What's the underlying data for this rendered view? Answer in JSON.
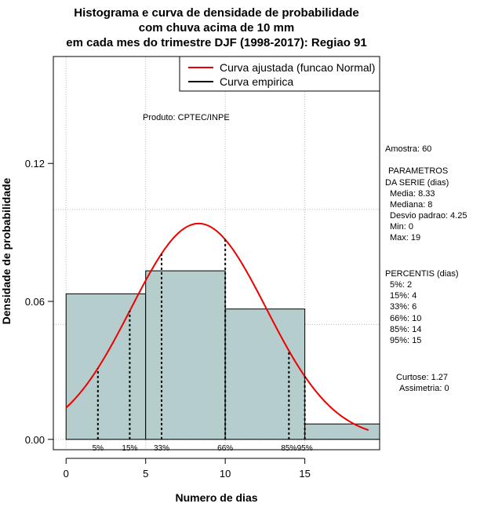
{
  "chart_data": {
    "type": "histogram",
    "title": [
      "Histograma e curva de densidade de probabilidade",
      "com chuva acima de 10 mm",
      "em cada mes do trimestre DJF (1998-2017): Regiao 91"
    ],
    "xlabel": "Numero de dias",
    "ylabel": "Densidade de probabilidade",
    "xlim": [
      -0.8,
      19.7
    ],
    "ylim": [
      -0.0045,
      0.1665
    ],
    "x_ticks": [
      0,
      5,
      10,
      15
    ],
    "x_tick_labels": [
      "0",
      "5",
      "10",
      "15"
    ],
    "y_ticks": [
      0.0,
      0.06,
      0.12
    ],
    "y_tick_labels": [
      "0.00",
      "0.06",
      "0.12"
    ],
    "grid": true,
    "grid_x": [
      0,
      5,
      10,
      15
    ],
    "grid_y": [
      0.0,
      0.05,
      0.1
    ],
    "bins": [
      {
        "x0": 0,
        "x1": 5,
        "density": 0.0633
      },
      {
        "x0": 5,
        "x1": 10,
        "density": 0.0733
      },
      {
        "x0": 10,
        "x1": 15,
        "density": 0.0567
      },
      {
        "x0": 15,
        "x1": 20,
        "density": 0.0067
      }
    ],
    "bar_color": "#b5cdcc",
    "normal_curve": {
      "name": "Curva ajustada (funcao Normal)",
      "mean": 8.33,
      "sd": 4.25,
      "x_range": [
        0,
        19
      ],
      "color": "#ee0000"
    },
    "empirical_curve": {
      "name": "Curva empirica",
      "color": "#000000"
    },
    "percentile_lines": [
      {
        "x": 2,
        "label": "5%"
      },
      {
        "x": 4,
        "label": "15%"
      },
      {
        "x": 6,
        "label": "33%"
      },
      {
        "x": 10,
        "label": "66%"
      },
      {
        "x": 14,
        "label": "85%"
      },
      {
        "x": 15,
        "label": "95%"
      }
    ],
    "legend_position": "top-right",
    "product_note": "Produto: CPTEC/INPE"
  },
  "side_panel": {
    "amostra": "Amostra: 60",
    "parametros_title_1": "PARAMETROS",
    "parametros_title_2": "DA SERIE (dias)",
    "media": "Media: 8.33",
    "mediana": "Mediana: 8",
    "desvio": "Desvio padrao: 4.25",
    "min": "Min: 0",
    "max": "Max: 19",
    "percentis_title": "PERCENTIS (dias)",
    "p5": "5%: 2",
    "p15": "15%: 4",
    "p33": "33%: 6",
    "p66": "66%: 10",
    "p85": "85%: 14",
    "p95": "95%: 15",
    "curtose": "Curtose: 1.27",
    "assimetria": "Assimetria: 0"
  }
}
